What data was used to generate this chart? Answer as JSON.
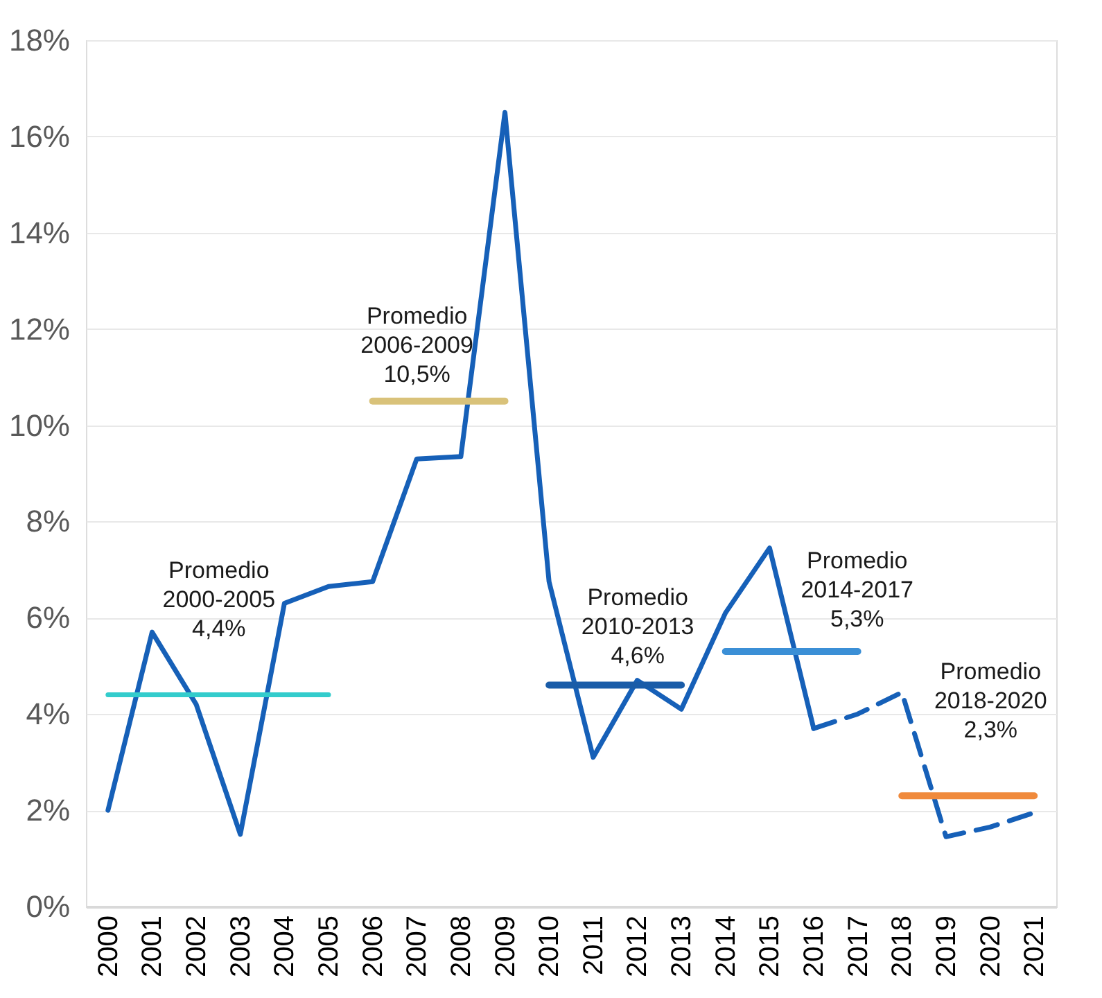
{
  "chart_data": {
    "type": "line",
    "categories": [
      "2000",
      "2001",
      "2002",
      "2003",
      "2004",
      "2005",
      "2006",
      "2007",
      "2008",
      "2009",
      "2010",
      "2011",
      "2012",
      "2013",
      "2014",
      "2015",
      "2016",
      "2017",
      "2018",
      "2019",
      "2020",
      "2021"
    ],
    "ylim": [
      0,
      18
    ],
    "yticks": [
      {
        "value": 0,
        "label": "0%"
      },
      {
        "value": 2,
        "label": "2%"
      },
      {
        "value": 4,
        "label": "4%"
      },
      {
        "value": 6,
        "label": "6%"
      },
      {
        "value": 8,
        "label": "8%"
      },
      {
        "value": 10,
        "label": "10%"
      },
      {
        "value": 12,
        "label": "12%"
      },
      {
        "value": 14,
        "label": "14%"
      },
      {
        "value": 16,
        "label": "16%"
      },
      {
        "value": 18,
        "label": "18%"
      }
    ],
    "grid": "y",
    "series": [
      {
        "color": "#1660b8",
        "line_style": "solid",
        "values": [
          2.0,
          5.7,
          4.2,
          1.5,
          6.3,
          6.65,
          6.75,
          9.3,
          9.35,
          16.5,
          6.75,
          3.1,
          4.7,
          4.1,
          6.1,
          7.45,
          3.7,
          null,
          null,
          null,
          null,
          null
        ]
      },
      {
        "color": "#1660b8",
        "line_style": "dashed",
        "values": [
          null,
          null,
          null,
          null,
          null,
          null,
          null,
          null,
          null,
          null,
          null,
          null,
          null,
          null,
          null,
          null,
          3.7,
          4.0,
          4.45,
          1.45,
          1.65,
          1.95
        ]
      },
      {
        "name": "Promedio\n2000-2005\n4,4%",
        "color": "#33cccc",
        "line_style": "solid",
        "values": [
          4.4,
          4.4,
          4.4,
          4.4,
          4.4,
          4.4,
          null,
          null,
          null,
          null,
          null,
          null,
          null,
          null,
          null,
          null,
          null,
          null,
          null,
          null,
          null,
          null
        ]
      },
      {
        "name": "Promedio\n2006-2009\n10,5%",
        "color": "#d9c27a",
        "line_style": "solid",
        "values": [
          null,
          null,
          null,
          null,
          null,
          null,
          10.5,
          10.5,
          10.5,
          10.5,
          null,
          null,
          null,
          null,
          null,
          null,
          null,
          null,
          null,
          null,
          null,
          null
        ]
      },
      {
        "name": "Promedio\n2010-2013\n4,6%",
        "color": "#1a5ca8",
        "line_style": "solid",
        "values": [
          null,
          null,
          null,
          null,
          null,
          null,
          null,
          null,
          null,
          null,
          4.6,
          4.6,
          4.6,
          4.6,
          null,
          null,
          null,
          null,
          null,
          null,
          null,
          null
        ]
      },
      {
        "name": "Promedio\n2014-2017\n5,3%",
        "color": "#3b8fd6",
        "line_style": "solid",
        "values": [
          null,
          null,
          null,
          null,
          null,
          null,
          null,
          null,
          null,
          null,
          null,
          null,
          null,
          null,
          5.3,
          5.3,
          5.3,
          5.3,
          null,
          null,
          null,
          null
        ]
      },
      {
        "name": "Promedio\n2018-2020\n2,3%",
        "color": "#f08a3c",
        "line_style": "solid",
        "values": [
          null,
          null,
          null,
          null,
          null,
          null,
          null,
          null,
          null,
          null,
          null,
          null,
          null,
          null,
          null,
          null,
          null,
          null,
          2.3,
          2.3,
          2.3,
          2.3
        ]
      }
    ]
  }
}
